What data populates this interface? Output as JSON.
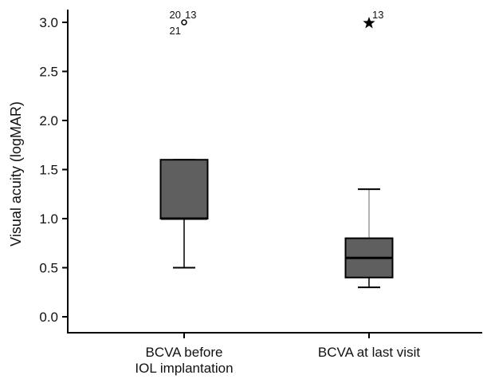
{
  "chart_data": {
    "type": "box",
    "ylabel": "Visual acuity (logMAR)",
    "ylim": [
      0,
      3
    ],
    "yticks": [
      "0.0",
      "0.5",
      "1.0",
      "1.5",
      "2.0",
      "2.5",
      "3.0"
    ],
    "grid": false,
    "categories": [
      [
        "BCVA before",
        "IOL implantation"
      ],
      [
        "BCVA at last visit"
      ]
    ],
    "boxes": [
      {
        "min": 0.5,
        "q1": 1.0,
        "median": 1.0,
        "q3": 1.6,
        "max": 1.6,
        "outliers": [
          {
            "y": 3.0,
            "marker": "circle",
            "labels": [
              "20",
              "13",
              "21"
            ]
          }
        ]
      },
      {
        "min": 0.3,
        "q1": 0.4,
        "median": 0.6,
        "q3": 0.8,
        "max": 1.3,
        "outliers": [
          {
            "y": 3.0,
            "marker": "star",
            "labels": [
              "13"
            ]
          }
        ]
      }
    ],
    "colors": {
      "box_fill": "#5f5f5f",
      "axis": "#000000",
      "upper_whisker": "#9a9a9a"
    }
  }
}
